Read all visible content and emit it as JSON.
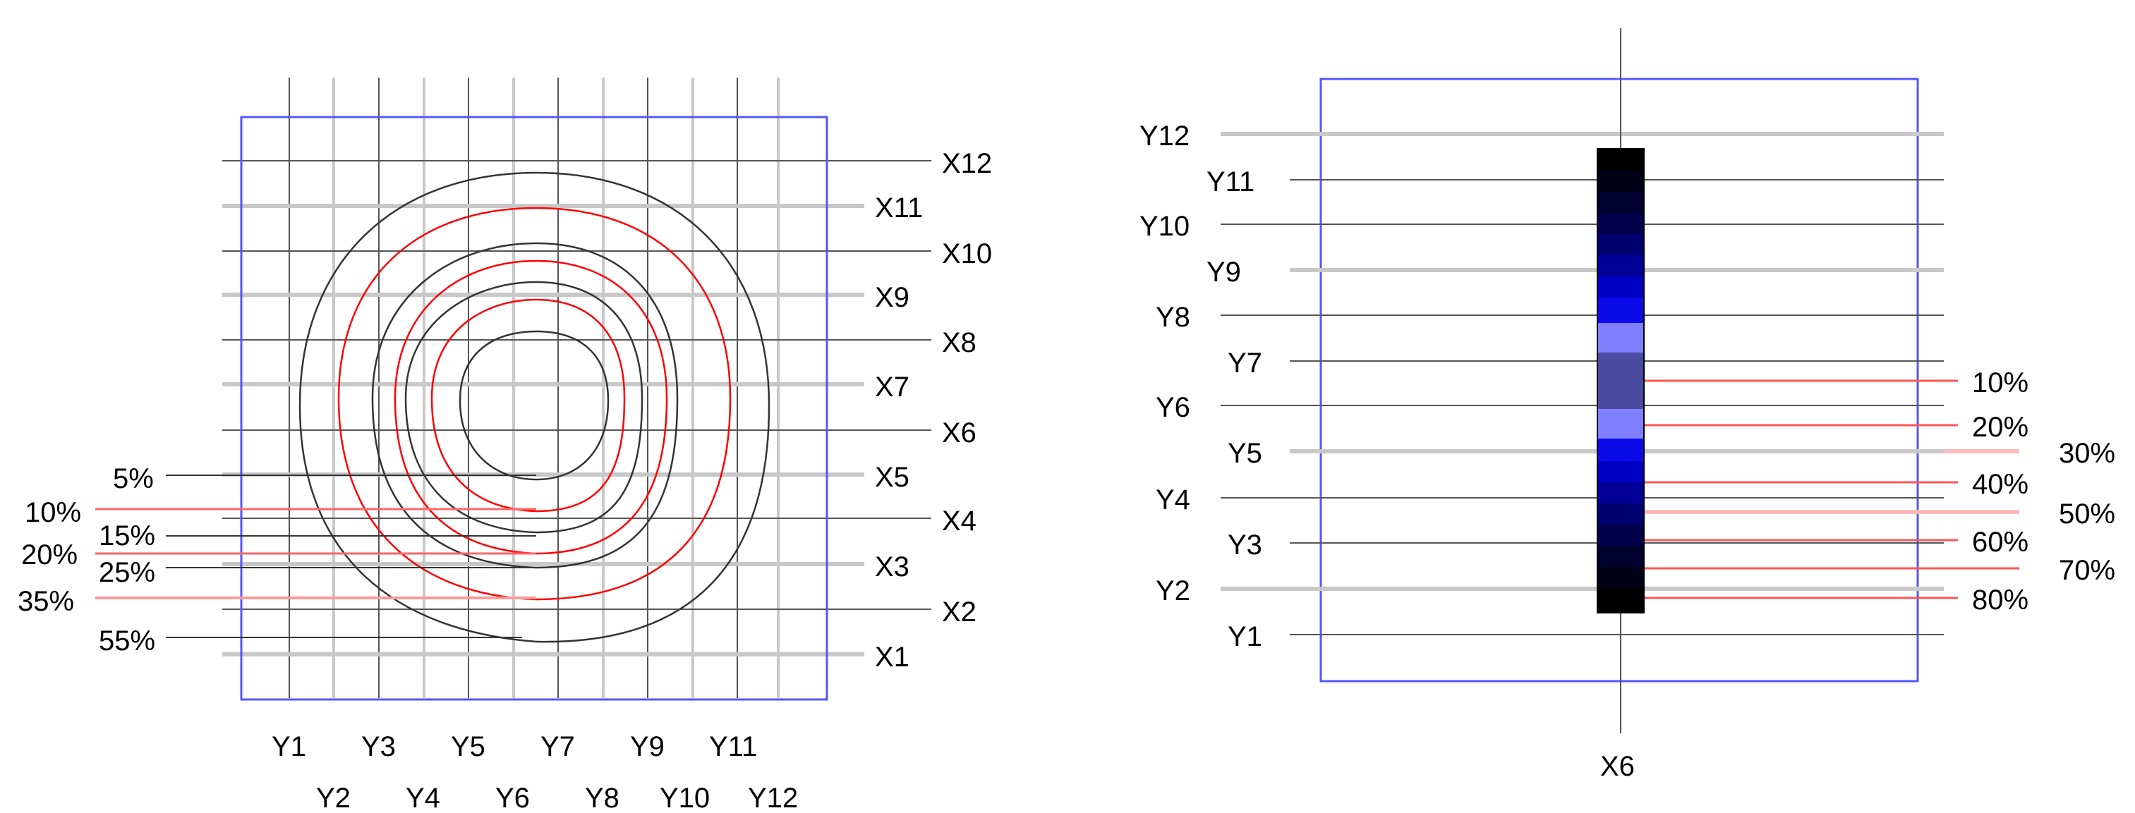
{
  "left_panel": {
    "x_labels": [
      "X1",
      "X2",
      "X3",
      "X4",
      "X5",
      "X6",
      "X7",
      "X8",
      "X9",
      "X10",
      "X11",
      "X12"
    ],
    "y_labels": [
      "Y1",
      "Y2",
      "Y3",
      "Y4",
      "Y5",
      "Y6",
      "Y7",
      "Y8",
      "Y9",
      "Y10",
      "Y11",
      "Y12"
    ],
    "contour_levels": [
      {
        "label": "5%",
        "color": "#000000"
      },
      {
        "label": "10%",
        "color": "#ff0000"
      },
      {
        "label": "15%",
        "color": "#000000"
      },
      {
        "label": "20%",
        "color": "#ff0000"
      },
      {
        "label": "25%",
        "color": "#000000"
      },
      {
        "label": "35%",
        "color": "#ff0000"
      },
      {
        "label": "55%",
        "color": "#000000"
      }
    ]
  },
  "right_panel": {
    "x_label": "X6",
    "y_labels": [
      "Y1",
      "Y2",
      "Y3",
      "Y4",
      "Y5",
      "Y6",
      "Y7",
      "Y8",
      "Y9",
      "Y10",
      "Y11",
      "Y12"
    ],
    "percent_labels": [
      "10%",
      "20%",
      "30%",
      "40%",
      "50%",
      "60%",
      "70%",
      "80%"
    ]
  },
  "colors": {
    "frame": "#5555ff",
    "grid_dark": "#555555",
    "grid_light": "#c8c8c8",
    "contour_black": "#333333",
    "contour_red": "#ff0000",
    "leader_red": "#ff8888"
  }
}
